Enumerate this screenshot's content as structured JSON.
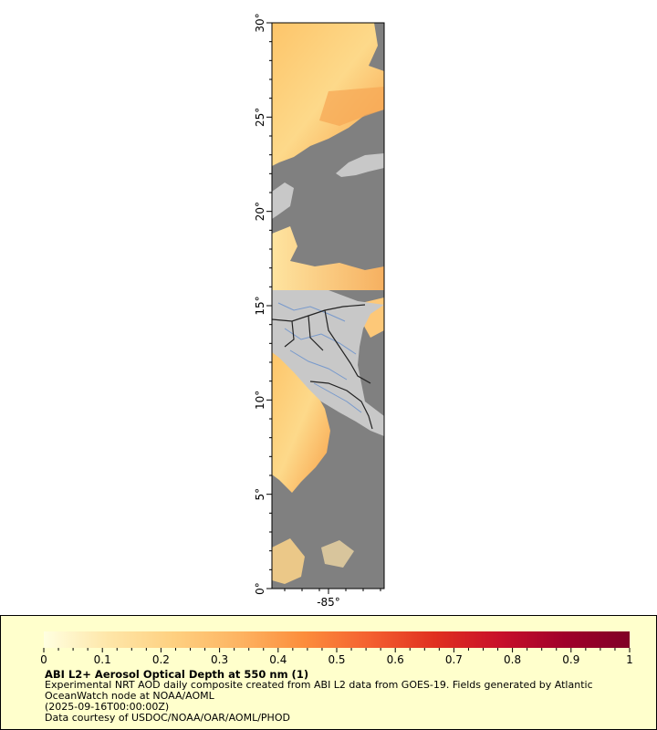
{
  "map": {
    "lat_labels": [
      "0°",
      "5°",
      "10°",
      "15°",
      "20°",
      "25°",
      "30°"
    ],
    "lon_labels": [
      "-85°"
    ],
    "colors": {
      "ocean_nodata": "#808080",
      "land": "#c8c8c8",
      "rivers": "#7799cc",
      "borders": "#222222",
      "frame": "#000000"
    }
  },
  "legend": {
    "title": "ABI L2+ Aerosol Optical Depth at 550 nm (1)",
    "description": "Experimental NRT AOD daily composite created from ABI L2 data from GOES-19. Fields generated by Atlantic OceanWatch node at NOAA/AOML",
    "timestamp": "(2025-09-16T00:00:00Z)",
    "credit": "Data courtesy of USDOC/NOAA/OAR/AOML/PHOD",
    "colorbar_min": 0,
    "colorbar_max": 1,
    "tick_labels": [
      "0",
      "0.1",
      "0.2",
      "0.3",
      "0.4",
      "0.5",
      "0.6",
      "0.7",
      "0.8",
      "0.9",
      "1"
    ],
    "colorbar_stops": [
      "#ffffe0",
      "#fee6a8",
      "#fed080",
      "#fdb462",
      "#fc8d3c",
      "#f46030",
      "#e03020",
      "#c8102a",
      "#a0002a",
      "#800026"
    ]
  }
}
